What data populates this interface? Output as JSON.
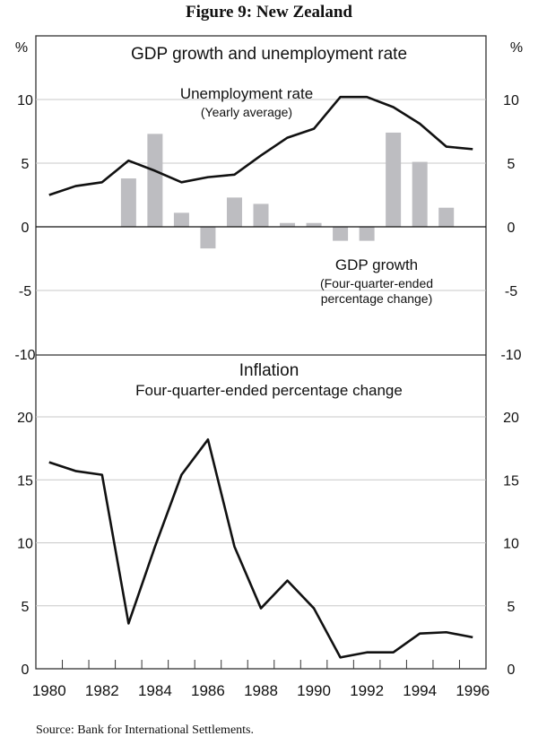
{
  "figure_title": "Figure 9: New Zealand",
  "source": "Source: Bank for International Settlements.",
  "chart_data": [
    {
      "type": "bar+line",
      "title": "GDP growth and unemployment rate",
      "unit_left": "%",
      "unit_right": "%",
      "ylim": [
        -10,
        15
      ],
      "yticks": [
        -10,
        -5,
        0,
        5,
        10
      ],
      "grid": true,
      "categories": [
        "1980",
        "1981",
        "1982",
        "1983",
        "1984",
        "1985",
        "1986",
        "1987",
        "1988",
        "1989",
        "1990",
        "1991",
        "1992",
        "1993",
        "1994",
        "1995",
        "1996"
      ],
      "series": [
        {
          "name": "Unemployment rate",
          "sublabel": "(Yearly average)",
          "kind": "line",
          "color": "#111111",
          "values": [
            2.5,
            3.2,
            3.5,
            5.2,
            4.4,
            3.5,
            3.9,
            4.1,
            5.6,
            7.0,
            7.7,
            10.2,
            10.2,
            9.4,
            8.1,
            6.3,
            6.1
          ]
        },
        {
          "name": "GDP growth",
          "sublabel": "(Four-quarter-ended percentage change)",
          "sublabel_lines": [
            "(Four-quarter-ended",
            "percentage change)"
          ],
          "kind": "bar",
          "color": "#bdbdc1",
          "values": [
            null,
            null,
            null,
            3.8,
            7.3,
            1.1,
            -1.7,
            2.3,
            1.8,
            0.3,
            0.3,
            -1.1,
            -1.1,
            7.4,
            5.1,
            1.5,
            null
          ]
        }
      ]
    },
    {
      "type": "line",
      "title": "Inflation",
      "subtitle": "Four-quarter-ended percentage change",
      "ylim": [
        0,
        25
      ],
      "yticks": [
        0,
        5,
        10,
        15,
        20
      ],
      "grid": true,
      "xticklabels": [
        "1980",
        "1982",
        "1984",
        "1986",
        "1988",
        "1990",
        "1992",
        "1994",
        "1996"
      ],
      "categories": [
        "1980",
        "1981",
        "1982",
        "1983",
        "1984",
        "1985",
        "1986",
        "1987",
        "1988",
        "1989",
        "1990",
        "1991",
        "1992",
        "1993",
        "1994",
        "1995",
        "1996"
      ],
      "series": [
        {
          "kind": "line",
          "color": "#111111",
          "values": [
            16.4,
            15.7,
            15.4,
            3.6,
            9.7,
            15.4,
            18.2,
            9.7,
            4.8,
            7.0,
            4.8,
            0.9,
            1.3,
            1.3,
            2.8,
            2.9,
            2.5
          ]
        }
      ]
    }
  ]
}
